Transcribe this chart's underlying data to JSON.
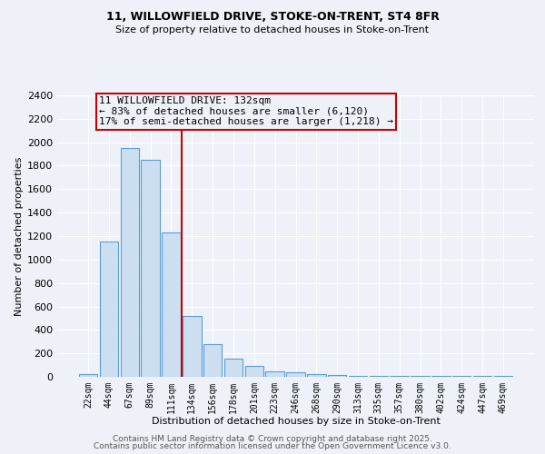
{
  "title1": "11, WILLOWFIELD DRIVE, STOKE-ON-TRENT, ST4 8FR",
  "title2": "Size of property relative to detached houses in Stoke-on-Trent",
  "xlabel": "Distribution of detached houses by size in Stoke-on-Trent",
  "ylabel": "Number of detached properties",
  "bar_color": "#ccdff0",
  "bar_edge_color": "#5b9bd5",
  "categories": [
    "22sqm",
    "44sqm",
    "67sqm",
    "89sqm",
    "111sqm",
    "134sqm",
    "156sqm",
    "178sqm",
    "201sqm",
    "223sqm",
    "246sqm",
    "268sqm",
    "290sqm",
    "313sqm",
    "335sqm",
    "357sqm",
    "380sqm",
    "402sqm",
    "424sqm",
    "447sqm",
    "469sqm"
  ],
  "values": [
    25,
    1150,
    1950,
    1850,
    1230,
    520,
    280,
    155,
    90,
    45,
    35,
    20,
    15,
    10,
    10,
    5,
    5,
    5,
    5,
    5,
    5
  ],
  "ylim": [
    0,
    2400
  ],
  "yticks": [
    0,
    200,
    400,
    600,
    800,
    1000,
    1200,
    1400,
    1600,
    1800,
    2000,
    2200,
    2400
  ],
  "vline_index": 5,
  "vline_color": "#cc0000",
  "annotation_text": "11 WILLOWFIELD DRIVE: 132sqm\n← 83% of detached houses are smaller (6,120)\n17% of semi-detached houses are larger (1,218) →",
  "annotation_box_color": "#cc0000",
  "annotation_text_color": "#000000",
  "background_color": "#eef2f8",
  "grid_color": "#ffffff",
  "footer1": "Contains HM Land Registry data © Crown copyright and database right 2025.",
  "footer2": "Contains public sector information licensed under the Open Government Licence v3.0.",
  "title1_fontsize": 9,
  "title2_fontsize": 8,
  "footer_fontsize": 6.5,
  "ylabel_fontsize": 8,
  "xlabel_fontsize": 8,
  "ytick_fontsize": 8,
  "xtick_fontsize": 7
}
